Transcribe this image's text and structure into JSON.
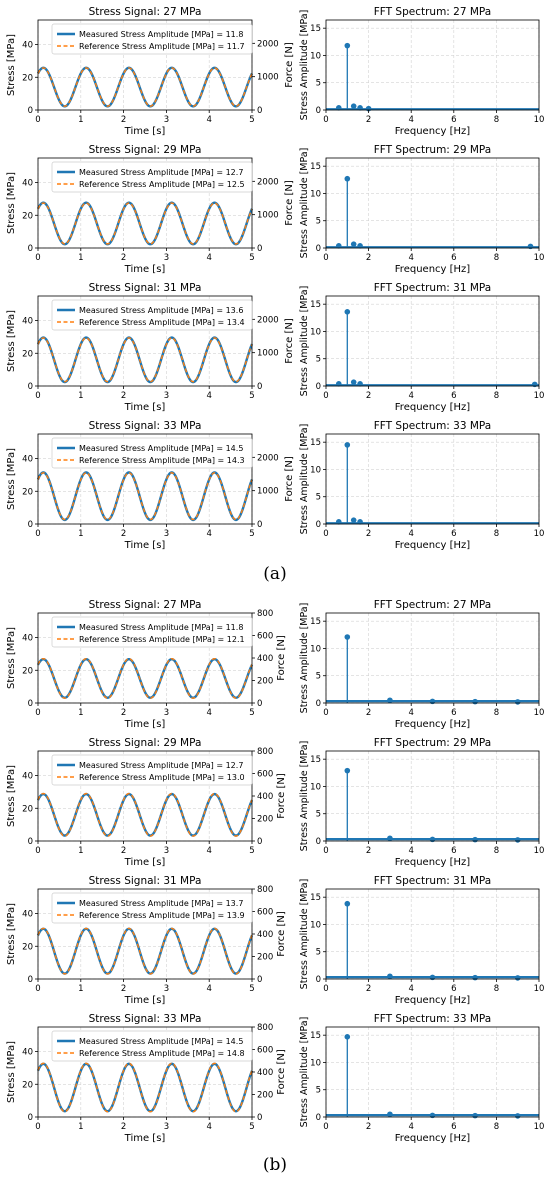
{
  "captions": {
    "a": "(a)",
    "b": "(b)"
  },
  "colors": {
    "measured": "#1f77b4",
    "reference": "#ff7f0e",
    "grid": "#d3d3d3",
    "axis": "#000000"
  },
  "chart_data": [
    {
      "type": "line",
      "group": "a",
      "title": "Stress Signal: 27 MPa",
      "xlabel": "Time [s]",
      "ylabel": "Stress [MPa]",
      "y2label": "Force [N]",
      "xlim": [
        0,
        5
      ],
      "ylim": [
        0,
        55
      ],
      "y2lim": [
        0,
        2700
      ],
      "xticks": [
        0,
        1,
        2,
        3,
        4,
        5
      ],
      "yticks": [
        0,
        20,
        40
      ],
      "y2ticks": [
        0,
        1000,
        2000
      ],
      "grid": true,
      "legend": "upper",
      "series": [
        {
          "name": "Measured Stress Amplitude [MPa] = 11.8",
          "mean": 14,
          "amplitude": 11.8,
          "frequency_hz": 1,
          "style": "solid"
        },
        {
          "name": "Reference Stress Amplitude [MPa] = 11.7",
          "mean": 14,
          "amplitude": 11.7,
          "frequency_hz": 1,
          "style": "dashed"
        }
      ]
    },
    {
      "type": "stem",
      "group": "a",
      "title": "FFT Spectrum: 27 MPa",
      "xlabel": "Frequency [Hz]",
      "ylabel": "Stress Amplitude [MPa]",
      "xlim": [
        0,
        10
      ],
      "ylim": [
        0,
        16.5
      ],
      "xticks": [
        0,
        2,
        4,
        6,
        8,
        10
      ],
      "yticks": [
        0,
        5,
        10,
        15
      ],
      "grid": true,
      "peaks": [
        [
          0.6,
          0.4
        ],
        [
          1.0,
          11.8
        ],
        [
          1.3,
          0.7
        ],
        [
          1.6,
          0.4
        ],
        [
          2.0,
          0.25
        ]
      ],
      "floor": 0.15
    },
    {
      "type": "line",
      "group": "a",
      "title": "Stress Signal: 29 MPa",
      "xlabel": "Time [s]",
      "ylabel": "Stress [MPa]",
      "y2label": "Force [N]",
      "xlim": [
        0,
        5
      ],
      "ylim": [
        0,
        55
      ],
      "y2lim": [
        0,
        2700
      ],
      "xticks": [
        0,
        1,
        2,
        3,
        4,
        5
      ],
      "yticks": [
        0,
        20,
        40
      ],
      "y2ticks": [
        0,
        1000,
        2000
      ],
      "grid": true,
      "legend": "upper",
      "series": [
        {
          "name": "Measured Stress Amplitude [MPa] = 12.7",
          "mean": 15,
          "amplitude": 12.7,
          "frequency_hz": 1,
          "style": "solid"
        },
        {
          "name": "Reference Stress Amplitude [MPa] = 12.5",
          "mean": 15,
          "amplitude": 12.5,
          "frequency_hz": 1,
          "style": "dashed"
        }
      ]
    },
    {
      "type": "stem",
      "group": "a",
      "title": "FFT Spectrum: 29 MPa",
      "xlabel": "Frequency [Hz]",
      "ylabel": "Stress Amplitude [MPa]",
      "xlim": [
        0,
        10
      ],
      "ylim": [
        0,
        16.5
      ],
      "xticks": [
        0,
        2,
        4,
        6,
        8,
        10
      ],
      "yticks": [
        0,
        5,
        10,
        15
      ],
      "grid": true,
      "peaks": [
        [
          0.6,
          0.4
        ],
        [
          1.0,
          12.7
        ],
        [
          1.3,
          0.7
        ],
        [
          1.6,
          0.4
        ],
        [
          9.6,
          0.3
        ]
      ],
      "floor": 0.15
    },
    {
      "type": "line",
      "group": "a",
      "title": "Stress Signal: 31 MPa",
      "xlabel": "Time [s]",
      "ylabel": "Stress [MPa]",
      "y2label": "Force [N]",
      "xlim": [
        0,
        5
      ],
      "ylim": [
        0,
        55
      ],
      "y2lim": [
        0,
        2700
      ],
      "xticks": [
        0,
        1,
        2,
        3,
        4,
        5
      ],
      "yticks": [
        0,
        20,
        40
      ],
      "y2ticks": [
        0,
        1000,
        2000
      ],
      "grid": true,
      "legend": "upper",
      "series": [
        {
          "name": "Measured Stress Amplitude [MPa] = 13.6",
          "mean": 16,
          "amplitude": 13.6,
          "frequency_hz": 1,
          "style": "solid"
        },
        {
          "name": "Reference Stress Amplitude [MPa] = 13.4",
          "mean": 16,
          "amplitude": 13.4,
          "frequency_hz": 1,
          "style": "dashed"
        }
      ]
    },
    {
      "type": "stem",
      "group": "a",
      "title": "FFT Spectrum: 31 MPa",
      "xlabel": "Frequency [Hz]",
      "ylabel": "Stress Amplitude [MPa]",
      "xlim": [
        0,
        10
      ],
      "ylim": [
        0,
        16.5
      ],
      "xticks": [
        0,
        2,
        4,
        6,
        8,
        10
      ],
      "yticks": [
        0,
        5,
        10,
        15
      ],
      "grid": true,
      "peaks": [
        [
          0.6,
          0.4
        ],
        [
          1.0,
          13.6
        ],
        [
          1.3,
          0.7
        ],
        [
          1.6,
          0.4
        ],
        [
          9.8,
          0.3
        ]
      ],
      "floor": 0.15
    },
    {
      "type": "line",
      "group": "a",
      "title": "Stress Signal: 33 MPa",
      "xlabel": "Time [s]",
      "ylabel": "Stress [MPa]",
      "y2label": "Force [N]",
      "xlim": [
        0,
        5
      ],
      "ylim": [
        0,
        55
      ],
      "y2lim": [
        0,
        2700
      ],
      "xticks": [
        0,
        1,
        2,
        3,
        4,
        5
      ],
      "yticks": [
        0,
        20,
        40
      ],
      "y2ticks": [
        0,
        1000,
        2000
      ],
      "grid": true,
      "legend": "upper",
      "series": [
        {
          "name": "Measured Stress Amplitude [MPa] = 14.5",
          "mean": 17,
          "amplitude": 14.5,
          "frequency_hz": 1,
          "style": "solid"
        },
        {
          "name": "Reference Stress Amplitude [MPa] = 14.3",
          "mean": 17,
          "amplitude": 14.3,
          "frequency_hz": 1,
          "style": "dashed"
        }
      ]
    },
    {
      "type": "stem",
      "group": "a",
      "title": "FFT Spectrum: 33 MPa",
      "xlabel": "Frequency [Hz]",
      "ylabel": "Stress Amplitude [MPa]",
      "xlim": [
        0,
        10
      ],
      "ylim": [
        0,
        16.5
      ],
      "xticks": [
        0,
        2,
        4,
        6,
        8,
        10
      ],
      "yticks": [
        0,
        5,
        10,
        15
      ],
      "grid": true,
      "peaks": [
        [
          0.6,
          0.4
        ],
        [
          1.0,
          14.5
        ],
        [
          1.3,
          0.7
        ],
        [
          1.6,
          0.4
        ]
      ],
      "floor": 0.15
    },
    {
      "type": "line",
      "group": "b",
      "title": "Stress Signal: 27 MPa",
      "xlabel": "Time [s]",
      "ylabel": "Stress [MPa]",
      "y2label": "Force [N]",
      "xlim": [
        0,
        5
      ],
      "ylim": [
        0,
        55
      ],
      "y2lim": [
        0,
        800
      ],
      "xticks": [
        0,
        1,
        2,
        3,
        4,
        5
      ],
      "yticks": [
        0,
        20,
        40
      ],
      "y2ticks": [
        0,
        200,
        400,
        600,
        800
      ],
      "grid": true,
      "legend": "upper",
      "series": [
        {
          "name": "Measured Stress Amplitude [MPa] = 11.8",
          "mean": 15,
          "amplitude": 11.8,
          "frequency_hz": 1,
          "style": "solid"
        },
        {
          "name": "Reference Stress Amplitude [MPa] = 12.1",
          "mean": 15,
          "amplitude": 12.1,
          "frequency_hz": 1,
          "style": "dashed"
        }
      ]
    },
    {
      "type": "stem",
      "group": "b",
      "title": "FFT Spectrum: 27 MPa",
      "xlabel": "Frequency [Hz]",
      "ylabel": "Stress Amplitude [MPa]",
      "xlim": [
        0,
        10
      ],
      "ylim": [
        0,
        16.5
      ],
      "xticks": [
        0,
        2,
        4,
        6,
        8,
        10
      ],
      "yticks": [
        0,
        5,
        10,
        15
      ],
      "grid": true,
      "peaks": [
        [
          1.0,
          12.1
        ],
        [
          3.0,
          0.5
        ],
        [
          5.0,
          0.3
        ],
        [
          7.0,
          0.25
        ],
        [
          9.0,
          0.2
        ]
      ],
      "floor": 0.35
    },
    {
      "type": "line",
      "group": "b",
      "title": "Stress Signal: 29 MPa",
      "xlabel": "Time [s]",
      "ylabel": "Stress [MPa]",
      "y2label": "Force [N]",
      "xlim": [
        0,
        5
      ],
      "ylim": [
        0,
        55
      ],
      "y2lim": [
        0,
        800
      ],
      "xticks": [
        0,
        1,
        2,
        3,
        4,
        5
      ],
      "yticks": [
        0,
        20,
        40
      ],
      "y2ticks": [
        0,
        200,
        400,
        600,
        800
      ],
      "grid": true,
      "legend": "upper",
      "series": [
        {
          "name": "Measured Stress Amplitude [MPa] = 12.7",
          "mean": 16,
          "amplitude": 12.7,
          "frequency_hz": 1,
          "style": "solid"
        },
        {
          "name": "Reference Stress Amplitude [MPa] = 13.0",
          "mean": 16,
          "amplitude": 13.0,
          "frequency_hz": 1,
          "style": "dashed"
        }
      ]
    },
    {
      "type": "stem",
      "group": "b",
      "title": "FFT Spectrum: 29 MPa",
      "xlabel": "Frequency [Hz]",
      "ylabel": "Stress Amplitude [MPa]",
      "xlim": [
        0,
        10
      ],
      "ylim": [
        0,
        16.5
      ],
      "xticks": [
        0,
        2,
        4,
        6,
        8,
        10
      ],
      "yticks": [
        0,
        5,
        10,
        15
      ],
      "grid": true,
      "peaks": [
        [
          1.0,
          12.9
        ],
        [
          3.0,
          0.5
        ],
        [
          5.0,
          0.3
        ],
        [
          7.0,
          0.25
        ],
        [
          9.0,
          0.2
        ]
      ],
      "floor": 0.35
    },
    {
      "type": "line",
      "group": "b",
      "title": "Stress Signal: 31 MPa",
      "xlabel": "Time [s]",
      "ylabel": "Stress [MPa]",
      "y2label": "Force [N]",
      "xlim": [
        0,
        5
      ],
      "ylim": [
        0,
        55
      ],
      "y2lim": [
        0,
        800
      ],
      "xticks": [
        0,
        1,
        2,
        3,
        4,
        5
      ],
      "yticks": [
        0,
        20,
        40
      ],
      "y2ticks": [
        0,
        200,
        400,
        600,
        800
      ],
      "grid": true,
      "legend": "upper",
      "series": [
        {
          "name": "Measured Stress Amplitude [MPa] = 13.7",
          "mean": 17,
          "amplitude": 13.7,
          "frequency_hz": 1,
          "style": "solid"
        },
        {
          "name": "Reference Stress Amplitude [MPa] = 13.9",
          "mean": 17,
          "amplitude": 13.9,
          "frequency_hz": 1,
          "style": "dashed"
        }
      ]
    },
    {
      "type": "stem",
      "group": "b",
      "title": "FFT Spectrum: 31 MPa",
      "xlabel": "Frequency [Hz]",
      "ylabel": "Stress Amplitude [MPa]",
      "xlim": [
        0,
        10
      ],
      "ylim": [
        0,
        16.5
      ],
      "xticks": [
        0,
        2,
        4,
        6,
        8,
        10
      ],
      "yticks": [
        0,
        5,
        10,
        15
      ],
      "grid": true,
      "peaks": [
        [
          1.0,
          13.8
        ],
        [
          3.0,
          0.5
        ],
        [
          5.0,
          0.3
        ],
        [
          7.0,
          0.25
        ],
        [
          9.0,
          0.2
        ]
      ],
      "floor": 0.35
    },
    {
      "type": "line",
      "group": "b",
      "title": "Stress Signal: 33 MPa",
      "xlabel": "Time [s]",
      "ylabel": "Stress [MPa]",
      "y2label": "Force [N]",
      "xlim": [
        0,
        5
      ],
      "ylim": [
        0,
        55
      ],
      "y2lim": [
        0,
        800
      ],
      "xticks": [
        0,
        1,
        2,
        3,
        4,
        5
      ],
      "yticks": [
        0,
        20,
        40
      ],
      "y2ticks": [
        0,
        200,
        400,
        600,
        800
      ],
      "grid": true,
      "legend": "upper",
      "series": [
        {
          "name": "Measured Stress Amplitude [MPa] = 14.5",
          "mean": 18,
          "amplitude": 14.5,
          "frequency_hz": 1,
          "style": "solid"
        },
        {
          "name": "Reference Stress Amplitude [MPa] = 14.8",
          "mean": 18,
          "amplitude": 14.8,
          "frequency_hz": 1,
          "style": "dashed"
        }
      ]
    },
    {
      "type": "stem",
      "group": "b",
      "title": "FFT Spectrum: 33 MPa",
      "xlabel": "Frequency [Hz]",
      "ylabel": "Stress Amplitude [MPa]",
      "xlim": [
        0,
        10
      ],
      "ylim": [
        0,
        16.5
      ],
      "xticks": [
        0,
        2,
        4,
        6,
        8,
        10
      ],
      "yticks": [
        0,
        5,
        10,
        15
      ],
      "grid": true,
      "peaks": [
        [
          1.0,
          14.7
        ],
        [
          3.0,
          0.5
        ],
        [
          5.0,
          0.3
        ],
        [
          7.0,
          0.25
        ],
        [
          9.0,
          0.2
        ]
      ],
      "floor": 0.35
    }
  ]
}
